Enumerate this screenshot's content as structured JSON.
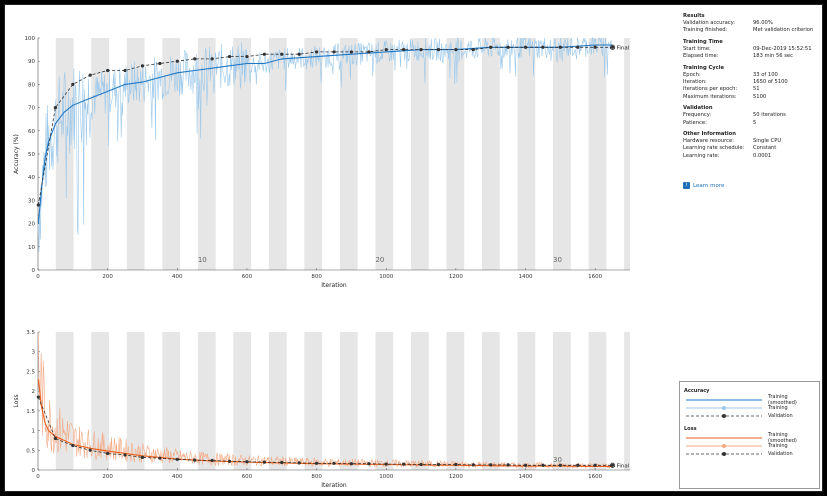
{
  "results": {
    "title": "Results",
    "rows": [
      {
        "key": "Validation accuracy:",
        "value": "96.00%"
      },
      {
        "key": "Training finished:",
        "value": "Met validation criterion"
      }
    ]
  },
  "training_time": {
    "title": "Training Time",
    "rows": [
      {
        "key": "Start time:",
        "value": "09-Dec-2019 15:52:51"
      },
      {
        "key": "Elapsed time:",
        "value": "183 min 56 sec"
      }
    ]
  },
  "training_cycle": {
    "title": "Training Cycle",
    "rows": [
      {
        "key": "Epoch:",
        "value": "33 of 100"
      },
      {
        "key": "Iteration:",
        "value": "1650 of 5100"
      },
      {
        "key": "Iterations per epoch:",
        "value": "51"
      },
      {
        "key": "Maximum iterations:",
        "value": "5100"
      }
    ]
  },
  "validation": {
    "title": "Validation",
    "rows": [
      {
        "key": "Frequency:",
        "value": "50 iterations"
      },
      {
        "key": "Patience:",
        "value": "5"
      }
    ]
  },
  "other_information": {
    "title": "Other Information",
    "rows": [
      {
        "key": "Hardware resource:",
        "value": "Single CPU"
      },
      {
        "key": "Learning rate schedule:",
        "value": "Constant"
      },
      {
        "key": "Learning rate:",
        "value": "0.0001"
      }
    ]
  },
  "learn_more": {
    "icon": "info-icon",
    "label": "Learn more"
  },
  "legend": {
    "accuracy_title": "Accuracy",
    "accuracy_items": [
      "Training (smoothed)",
      "Training",
      "Validation"
    ],
    "loss_title": "Loss",
    "loss_items": [
      "Training (smoothed)",
      "Training",
      "Validation"
    ]
  },
  "colors": {
    "accuracy_smoothed": "#1f77c4",
    "accuracy_raw": "#9cc8ea",
    "loss_smoothed": "#e8601c",
    "loss_raw": "#f3a983",
    "validation": "#333333",
    "epoch_band": "#e6e6e6"
  },
  "chart_data": [
    {
      "type": "line",
      "ylabel": "Accuracy (%)",
      "xlabel": "Iteration",
      "xlim": [
        0,
        1700
      ],
      "ylim": [
        0,
        100
      ],
      "xticks": [
        0,
        200,
        400,
        600,
        800,
        1000,
        1200,
        1400,
        1600
      ],
      "yticks": [
        0,
        10,
        20,
        30,
        40,
        50,
        60,
        70,
        80,
        90,
        100
      ],
      "epoch_labels": [
        {
          "epoch": 10,
          "x": 459
        },
        {
          "epoch": 20,
          "x": 969
        },
        {
          "epoch": 30,
          "x": 1479
        }
      ],
      "final_label": "Final",
      "series": [
        {
          "name": "Training (smoothed)",
          "x": [
            1,
            10,
            20,
            30,
            50,
            75,
            100,
            150,
            200,
            250,
            300,
            350,
            400,
            450,
            500,
            550,
            600,
            650,
            700,
            800,
            900,
            1000,
            1100,
            1200,
            1300,
            1400,
            1500,
            1600,
            1650
          ],
          "values": [
            20,
            35,
            48,
            55,
            63,
            68,
            71,
            74,
            77,
            80,
            81,
            83,
            85,
            86,
            87,
            88,
            89,
            89,
            91,
            92,
            93,
            94,
            95,
            95,
            96,
            96,
            96,
            97,
            97
          ]
        },
        {
          "name": "Validation",
          "x": [
            1,
            50,
            100,
            150,
            200,
            250,
            300,
            350,
            400,
            450,
            500,
            550,
            600,
            650,
            700,
            750,
            800,
            850,
            900,
            950,
            1000,
            1050,
            1100,
            1150,
            1200,
            1250,
            1300,
            1350,
            1400,
            1450,
            1500,
            1550,
            1600,
            1650
          ],
          "values": [
            28,
            70,
            80,
            84,
            86,
            86,
            88,
            89,
            90,
            91,
            91,
            92,
            92,
            93,
            93,
            93,
            94,
            94,
            94,
            94,
            95,
            95,
            95,
            95,
            95,
            95,
            96,
            96,
            96,
            96,
            96,
            96,
            96,
            96
          ]
        }
      ]
    },
    {
      "type": "line",
      "ylabel": "Loss",
      "xlabel": "Iteration",
      "xlim": [
        0,
        1700
      ],
      "ylim": [
        0,
        3.5
      ],
      "xticks": [
        0,
        200,
        400,
        600,
        800,
        1000,
        1200,
        1400,
        1600
      ],
      "yticks": [
        0,
        0.5,
        1,
        1.5,
        2,
        2.5,
        3,
        3.5
      ],
      "epoch_labels": [
        {
          "epoch": 30,
          "x": 1479
        }
      ],
      "final_label": "Final",
      "series": [
        {
          "name": "Training (smoothed)",
          "x": [
            1,
            10,
            20,
            30,
            50,
            75,
            100,
            150,
            200,
            250,
            300,
            350,
            400,
            450,
            500,
            600,
            700,
            800,
            900,
            1000,
            1100,
            1200,
            1300,
            1400,
            1500,
            1600,
            1650
          ],
          "values": [
            2.3,
            1.6,
            1.2,
            1.0,
            0.85,
            0.75,
            0.65,
            0.55,
            0.48,
            0.42,
            0.36,
            0.32,
            0.28,
            0.25,
            0.23,
            0.2,
            0.18,
            0.16,
            0.15,
            0.14,
            0.13,
            0.12,
            0.11,
            0.1,
            0.1,
            0.09,
            0.09
          ]
        },
        {
          "name": "Validation",
          "x": [
            1,
            50,
            100,
            150,
            200,
            250,
            300,
            350,
            400,
            450,
            500,
            550,
            600,
            650,
            700,
            750,
            800,
            850,
            900,
            950,
            1000,
            1050,
            1100,
            1150,
            1200,
            1250,
            1300,
            1350,
            1400,
            1450,
            1500,
            1550,
            1600,
            1650
          ],
          "values": [
            1.85,
            0.8,
            0.62,
            0.5,
            0.42,
            0.38,
            0.32,
            0.3,
            0.27,
            0.25,
            0.24,
            0.22,
            0.21,
            0.2,
            0.19,
            0.18,
            0.17,
            0.17,
            0.16,
            0.16,
            0.15,
            0.15,
            0.14,
            0.14,
            0.14,
            0.13,
            0.13,
            0.13,
            0.12,
            0.12,
            0.12,
            0.12,
            0.12,
            0.12
          ]
        }
      ]
    }
  ]
}
